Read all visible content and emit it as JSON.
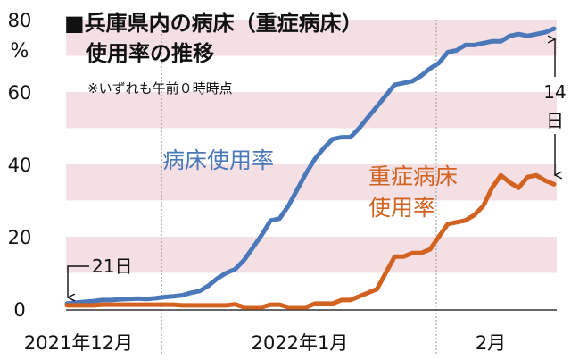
{
  "title": "■兵庫県内の病床（重症病床）",
  "title_line2": "使用率の推移",
  "note": "※いずれも午前０時時点",
  "unit": "%",
  "colors": {
    "bed_usage": "#4a78b8",
    "severe_usage": "#d2621f",
    "band": "#f4dfe4",
    "axis": "#333333",
    "grid_sep": "#999999"
  },
  "chart_data": {
    "type": "line",
    "x_start": "2021-12-21",
    "x_end": "2022-02-14",
    "ylim": [
      0,
      80
    ],
    "yticks": [
      0,
      20,
      40,
      60,
      80
    ],
    "xlabel_months": [
      "2021年12月",
      "2022年1月",
      "2月"
    ],
    "series": [
      {
        "name": "病床使用率",
        "label_lines": [
          "病床使用率"
        ],
        "points": [
          [
            "2021-12-21",
            1.5
          ],
          [
            "2021-12-22",
            1.8
          ],
          [
            "2021-12-23",
            2.0
          ],
          [
            "2021-12-24",
            2.2
          ],
          [
            "2021-12-25",
            2.5
          ],
          [
            "2021-12-26",
            2.5
          ],
          [
            "2021-12-27",
            2.7
          ],
          [
            "2021-12-28",
            2.8
          ],
          [
            "2021-12-29",
            2.9
          ],
          [
            "2021-12-30",
            2.8
          ],
          [
            "2021-12-31",
            3.0
          ],
          [
            "2022-01-01",
            3.3
          ],
          [
            "2022-01-02",
            3.5
          ],
          [
            "2022-01-03",
            3.8
          ],
          [
            "2022-01-04",
            4.5
          ],
          [
            "2022-01-05",
            5.0
          ],
          [
            "2022-01-06",
            6.5
          ],
          [
            "2022-01-07",
            8.5
          ],
          [
            "2022-01-08",
            10.0
          ],
          [
            "2022-01-09",
            11.0
          ],
          [
            "2022-01-10",
            13.5
          ],
          [
            "2022-01-11",
            17.0
          ],
          [
            "2022-01-12",
            20.5
          ],
          [
            "2022-01-13",
            24.5
          ],
          [
            "2022-01-14",
            25.0
          ],
          [
            "2022-01-15",
            28.5
          ],
          [
            "2022-01-16",
            33.0
          ],
          [
            "2022-01-17",
            37.5
          ],
          [
            "2022-01-18",
            41.5
          ],
          [
            "2022-01-19",
            44.5
          ],
          [
            "2022-01-20",
            47.0
          ],
          [
            "2022-01-21",
            47.5
          ],
          [
            "2022-01-22",
            47.5
          ],
          [
            "2022-01-23",
            50.0
          ],
          [
            "2022-01-24",
            53.0
          ],
          [
            "2022-01-25",
            56.0
          ],
          [
            "2022-01-26",
            59.0
          ],
          [
            "2022-01-27",
            62.0
          ],
          [
            "2022-01-28",
            62.5
          ],
          [
            "2022-01-29",
            63.0
          ],
          [
            "2022-01-30",
            64.5
          ],
          [
            "2022-01-31",
            66.5
          ],
          [
            "2022-02-01",
            68.0
          ],
          [
            "2022-02-02",
            71.0
          ],
          [
            "2022-02-03",
            71.5
          ],
          [
            "2022-02-04",
            73.0
          ],
          [
            "2022-02-05",
            73.0
          ],
          [
            "2022-02-06",
            73.5
          ],
          [
            "2022-02-07",
            74.0
          ],
          [
            "2022-02-08",
            74.0
          ],
          [
            "2022-02-09",
            75.5
          ],
          [
            "2022-02-10",
            76.0
          ],
          [
            "2022-02-11",
            75.5
          ],
          [
            "2022-02-12",
            76.0
          ],
          [
            "2022-02-13",
            76.5
          ],
          [
            "2022-02-14",
            77.5
          ]
        ]
      },
      {
        "name": "重症病床使用率",
        "label_lines": [
          "重症病床",
          "使用率"
        ],
        "points": [
          [
            "2021-12-21",
            1.0
          ],
          [
            "2021-12-22",
            1.0
          ],
          [
            "2021-12-23",
            1.0
          ],
          [
            "2021-12-24",
            1.0
          ],
          [
            "2021-12-25",
            1.2
          ],
          [
            "2021-12-26",
            1.2
          ],
          [
            "2021-12-27",
            1.2
          ],
          [
            "2021-12-28",
            1.2
          ],
          [
            "2021-12-29",
            1.2
          ],
          [
            "2021-12-30",
            1.2
          ],
          [
            "2021-12-31",
            1.2
          ],
          [
            "2022-01-01",
            1.2
          ],
          [
            "2022-01-02",
            1.2
          ],
          [
            "2022-01-03",
            1.0
          ],
          [
            "2022-01-04",
            1.0
          ],
          [
            "2022-01-05",
            1.0
          ],
          [
            "2022-01-06",
            1.0
          ],
          [
            "2022-01-07",
            1.0
          ],
          [
            "2022-01-08",
            1.0
          ],
          [
            "2022-01-09",
            1.3
          ],
          [
            "2022-01-10",
            0.5
          ],
          [
            "2022-01-11",
            0.5
          ],
          [
            "2022-01-12",
            0.5
          ],
          [
            "2022-01-13",
            1.2
          ],
          [
            "2022-01-14",
            1.2
          ],
          [
            "2022-01-15",
            0.5
          ],
          [
            "2022-01-16",
            0.5
          ],
          [
            "2022-01-17",
            0.5
          ],
          [
            "2022-01-18",
            1.5
          ],
          [
            "2022-01-19",
            1.5
          ],
          [
            "2022-01-20",
            1.5
          ],
          [
            "2022-01-21",
            2.5
          ],
          [
            "2022-01-22",
            2.5
          ],
          [
            "2022-01-23",
            3.5
          ],
          [
            "2022-01-24",
            4.5
          ],
          [
            "2022-01-25",
            5.5
          ],
          [
            "2022-01-26",
            10.0
          ],
          [
            "2022-01-27",
            14.5
          ],
          [
            "2022-01-28",
            14.5
          ],
          [
            "2022-01-29",
            15.5
          ],
          [
            "2022-01-30",
            15.5
          ],
          [
            "2022-01-31",
            16.5
          ],
          [
            "2022-02-01",
            20.0
          ],
          [
            "2022-02-02",
            23.5
          ],
          [
            "2022-02-03",
            24.0
          ],
          [
            "2022-02-04",
            24.5
          ],
          [
            "2022-02-05",
            26.0
          ],
          [
            "2022-02-06",
            28.5
          ],
          [
            "2022-02-07",
            33.5
          ],
          [
            "2022-02-08",
            37.0
          ],
          [
            "2022-02-09",
            35.0
          ],
          [
            "2022-02-10",
            33.5
          ],
          [
            "2022-02-11",
            36.5
          ],
          [
            "2022-02-12",
            37.0
          ],
          [
            "2022-02-13",
            35.5
          ],
          [
            "2022-02-14",
            34.5
          ]
        ]
      }
    ],
    "annotations": [
      {
        "text": "21日",
        "target": "2021-12-21"
      },
      {
        "text": "14日",
        "target": "2022-02-14"
      }
    ]
  }
}
